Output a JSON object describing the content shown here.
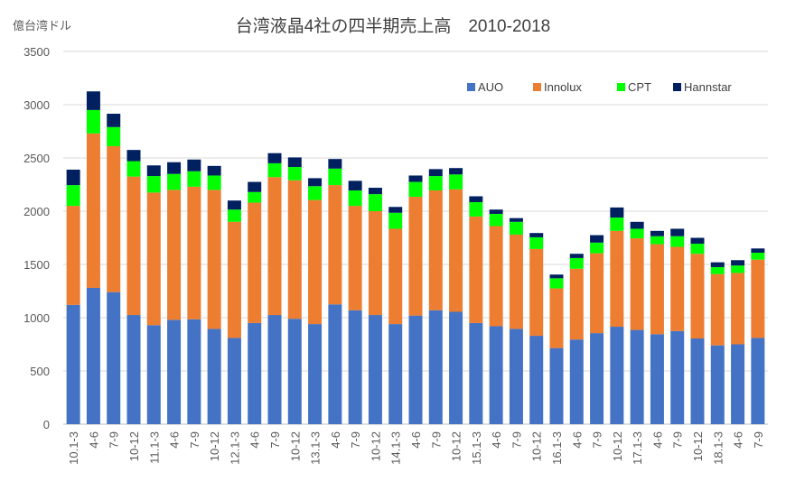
{
  "chart_data": {
    "type": "bar",
    "stacked": true,
    "title": "台湾液晶4社の四半期売上高　2010-2018",
    "ylabel": "億台湾ドル",
    "xlabel": "",
    "ylim": [
      0,
      3500
    ],
    "yticks": [
      0,
      500,
      1000,
      1500,
      2000,
      2500,
      3000,
      3500
    ],
    "grid": true,
    "legend_position": "top-right",
    "categories": [
      "10.1-3",
      "4-6",
      "7-9",
      "10-12",
      "11.1-3",
      "4-6",
      "7-9",
      "10-12",
      "12.1-3",
      "4-6",
      "7-9",
      "10-12",
      "13.1-3",
      "4-6",
      "7-9",
      "10-12",
      "14.1-3",
      "4-6",
      "7-9",
      "10-12",
      "15.1-3",
      "4-6",
      "7-9",
      "10-12",
      "16.1-3",
      "4-6",
      "7-9",
      "10-12",
      "17.1-3",
      "4-6",
      "7-9",
      "10-12",
      "18.1-3",
      "4-6",
      "7-9"
    ],
    "series": [
      {
        "name": "AUO",
        "color": "#4472C4",
        "values": [
          1120,
          1280,
          1240,
          1025,
          930,
          980,
          985,
          895,
          810,
          950,
          1025,
          990,
          940,
          1125,
          1070,
          1025,
          940,
          1020,
          1070,
          1055,
          950,
          920,
          895,
          830,
          715,
          795,
          855,
          915,
          885,
          845,
          875,
          805,
          740,
          750,
          810
        ]
      },
      {
        "name": "Innolux",
        "color": "#ED7D31",
        "values": [
          930,
          1450,
          1370,
          1300,
          1245,
          1220,
          1245,
          1305,
          1090,
          1130,
          1295,
          1300,
          1165,
          1120,
          980,
          975,
          895,
          1115,
          1125,
          1150,
          1000,
          940,
          885,
          815,
          560,
          665,
          750,
          900,
          860,
          845,
          790,
          795,
          670,
          670,
          735
        ]
      },
      {
        "name": "CPT",
        "color": "#00FF00",
        "values": [
          195,
          220,
          180,
          145,
          155,
          150,
          145,
          135,
          115,
          100,
          130,
          125,
          130,
          155,
          145,
          160,
          150,
          140,
          135,
          140,
          135,
          115,
          120,
          110,
          95,
          100,
          100,
          125,
          90,
          75,
          100,
          95,
          65,
          70,
          65
        ]
      },
      {
        "name": "Hannstar",
        "color": "#002060",
        "values": [
          145,
          175,
          125,
          105,
          100,
          110,
          110,
          90,
          85,
          95,
          95,
          90,
          75,
          90,
          90,
          60,
          55,
          60,
          65,
          60,
          55,
          40,
          35,
          40,
          35,
          40,
          70,
          95,
          65,
          50,
          70,
          55,
          45,
          50,
          40
        ]
      }
    ]
  }
}
